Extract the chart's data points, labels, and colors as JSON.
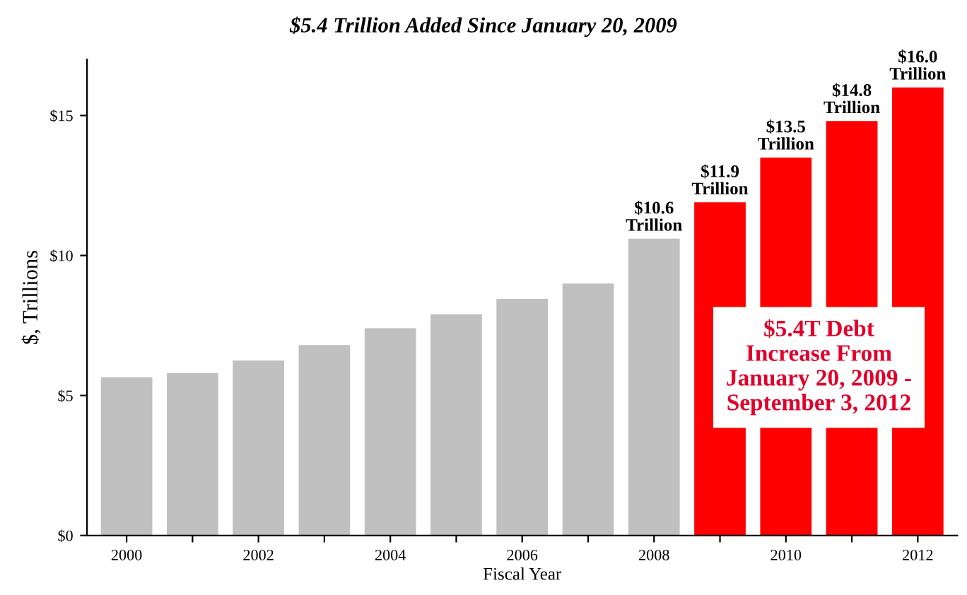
{
  "chart_data": {
    "type": "bar",
    "subtitle": "$5.4 Trillion Added Since January 20, 2009",
    "xlabel": "Fiscal Year",
    "ylabel": "$, Trillions",
    "categories": [
      "2000",
      null,
      "2002",
      null,
      "2004",
      null,
      "2006",
      null,
      "2008",
      null,
      "2010",
      null,
      "2012"
    ],
    "values": [
      5.65,
      5.8,
      6.25,
      6.8,
      7.4,
      7.9,
      8.45,
      9.0,
      10.6,
      11.9,
      13.5,
      14.8,
      16.0
    ],
    "colors": [
      "#c0c0c0",
      "#c0c0c0",
      "#c0c0c0",
      "#c0c0c0",
      "#c0c0c0",
      "#c0c0c0",
      "#c0c0c0",
      "#c0c0c0",
      "#c0c0c0",
      "#ff0000",
      "#ff0000",
      "#ff0000",
      "#ff0000"
    ],
    "value_labels": [
      null,
      null,
      null,
      null,
      null,
      null,
      null,
      null,
      "$10.6\nTrillion",
      "$11.9\nTrillion",
      "$13.5\nTrillion",
      "$14.8\nTrillion",
      "$16.0\nTrillion"
    ],
    "ylim": [
      0,
      17
    ],
    "yticks": [
      {
        "value": 0,
        "label": "$0"
      },
      {
        "value": 5,
        "label": "$5"
      },
      {
        "value": 10,
        "label": "$10"
      },
      {
        "value": 15,
        "label": "$15"
      }
    ],
    "annotations": [
      "$5.4T Debt\nIncrease From\nJanuary 20, 2009 -\nSeptember 3, 2012"
    ],
    "grid": false,
    "legend": false
  }
}
